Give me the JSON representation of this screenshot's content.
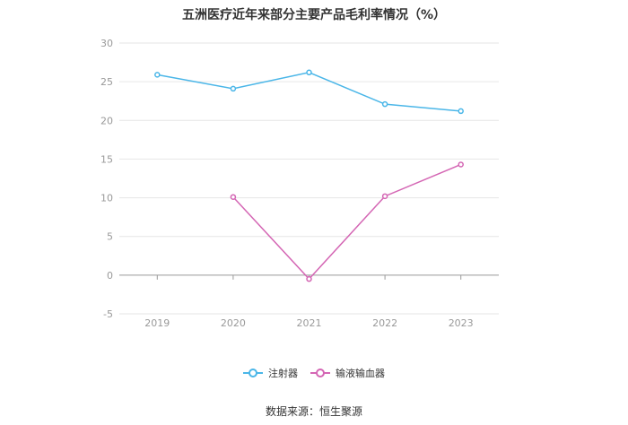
{
  "chart_data": {
    "type": "line",
    "title": "五洲医疗近年来部分主要产品毛利率情况（%）",
    "categories": [
      "2019",
      "2020",
      "2021",
      "2022",
      "2023"
    ],
    "ylim": [
      -5,
      30
    ],
    "yticks": [
      30,
      25,
      20,
      15,
      10,
      5,
      0,
      -5
    ],
    "grid": true,
    "legend_position": "bottom",
    "series": [
      {
        "name": "注射器",
        "color": "#4ab6e8",
        "values": [
          25.9,
          24.1,
          26.2,
          22.1,
          21.2
        ]
      },
      {
        "name": "输液输血器",
        "color": "#d466b4",
        "values": [
          null,
          10.1,
          -0.5,
          10.2,
          14.3
        ]
      }
    ],
    "source": "数据来源：恒生聚源"
  }
}
